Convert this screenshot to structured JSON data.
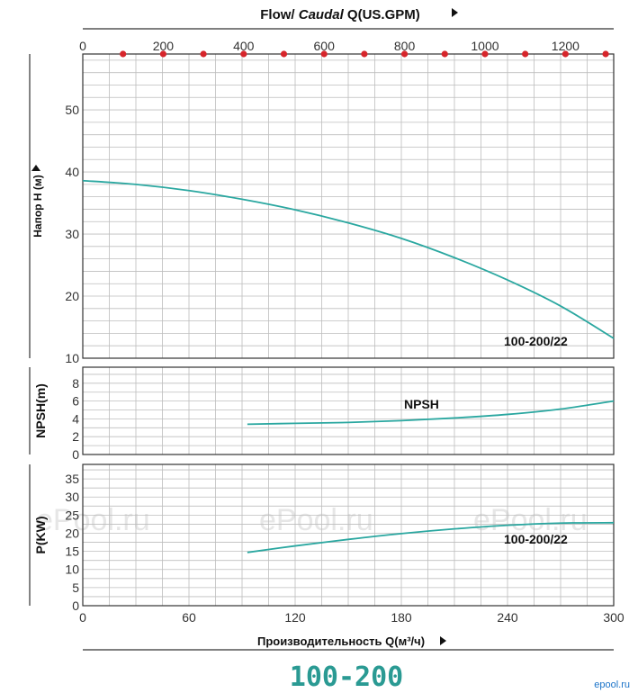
{
  "top_axis": {
    "title_prefix": "Flow/ ",
    "title_italic": "Caudal",
    "title_suffix": " Q(US.GPM)",
    "ticks": [
      "0",
      "200",
      "400",
      "600",
      "800",
      "1000",
      "1200"
    ],
    "marker_color": "#d7252b"
  },
  "bottom_axis": {
    "title": "Производительность Q(м³/ч)",
    "ticks": [
      "0",
      "60",
      "120",
      "180",
      "240",
      "300"
    ]
  },
  "model_title": "100-200",
  "watermark": "ePool.ru",
  "corner_logo": "epool.ru",
  "colors": {
    "curve": "#2aa7a0",
    "title": "#2a9a93"
  },
  "chart_data": [
    {
      "type": "line",
      "ylabel": "Напор H (м)",
      "yticks": [
        "10",
        "20",
        "30",
        "40",
        "50"
      ],
      "xlim": [
        0,
        300
      ],
      "ylim": [
        10,
        59
      ],
      "annotation": "100-200/22",
      "series": [
        {
          "name": "100-200/22",
          "x": [
            0,
            30,
            60,
            90,
            120,
            150,
            180,
            210,
            240,
            270,
            300
          ],
          "y": [
            38.6,
            38.0,
            37.0,
            35.6,
            33.9,
            31.8,
            29.3,
            26.2,
            22.6,
            18.4,
            13.2
          ]
        }
      ]
    },
    {
      "type": "line",
      "ylabel": "NPSH(m)",
      "yticks": [
        "0",
        "2",
        "4",
        "6",
        "8"
      ],
      "xlim": [
        0,
        300
      ],
      "ylim": [
        0,
        9.8
      ],
      "annotation": "NPSH",
      "series": [
        {
          "x": [
            93,
            120,
            150,
            180,
            210,
            240,
            270,
            300
          ],
          "y": [
            3.4,
            3.5,
            3.6,
            3.8,
            4.1,
            4.5,
            5.1,
            6.0
          ]
        }
      ]
    },
    {
      "type": "line",
      "ylabel": "P(KW)",
      "yticks": [
        "0",
        "5",
        "10",
        "15",
        "20",
        "25",
        "30",
        "35"
      ],
      "xlim": [
        0,
        300
      ],
      "ylim": [
        0,
        39
      ],
      "annotation": "100-200/22",
      "series": [
        {
          "x": [
            93,
            120,
            150,
            180,
            210,
            240,
            270,
            300
          ],
          "y": [
            14.7,
            16.5,
            18.3,
            19.9,
            21.2,
            22.2,
            22.8,
            22.9
          ]
        }
      ]
    }
  ]
}
